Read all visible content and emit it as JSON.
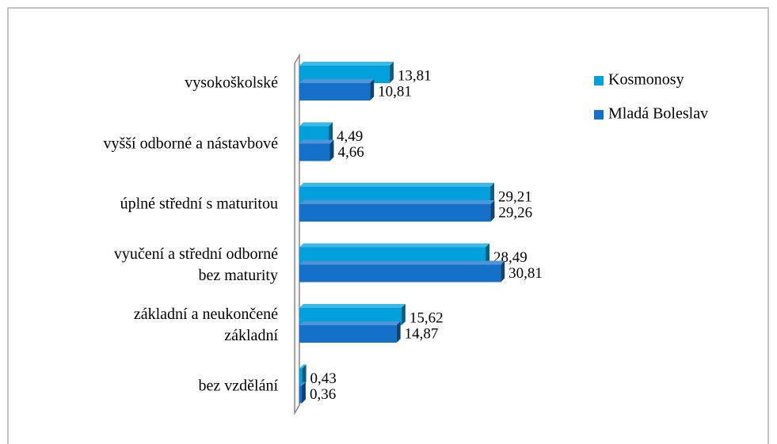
{
  "chart_data": {
    "type": "bar",
    "orientation": "horizontal",
    "categories": [
      "vysokoškolské",
      "vyšší odborné a nástavbové",
      "úplné střední s maturitou",
      "vyučení a střední odborné\nbez maturity",
      "základní a neukončené\nzákladní",
      "bez vzdělání"
    ],
    "series": [
      {
        "name": "Kosmonosy",
        "color": "#00a0dc",
        "values": [
          13.81,
          4.49,
          29.21,
          28.49,
          15.62,
          0.43
        ],
        "value_labels": [
          "13,81",
          "4,49",
          "29,21",
          "28,49",
          "15,62",
          "0,43"
        ]
      },
      {
        "name": "Mladá Boleslav",
        "color": "#1470c8",
        "values": [
          10.81,
          4.66,
          29.26,
          30.81,
          14.87,
          0.36
        ],
        "value_labels": [
          "10,81",
          "4,66",
          "29,26",
          "30,81",
          "14,87",
          "0,36"
        ]
      }
    ]
  }
}
